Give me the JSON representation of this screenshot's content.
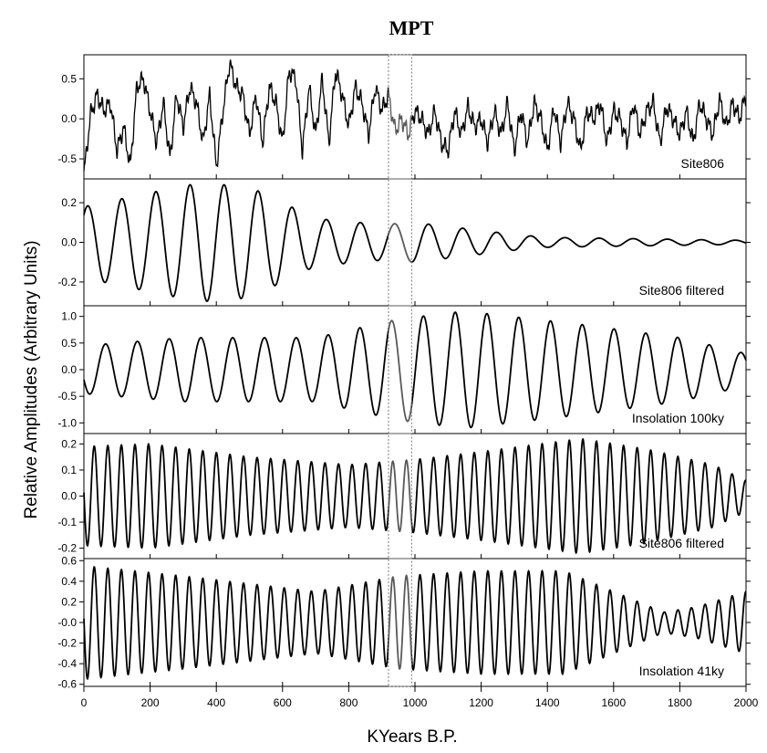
{
  "chart_data": {
    "type": "line",
    "title": "MPT",
    "xlabel": "KYears B.P.",
    "ylabel": "Relative Amplitudes (Arbitrary Units)",
    "xlim": [
      0,
      2000
    ],
    "x_ticks": [
      0,
      200,
      400,
      600,
      800,
      1000,
      1200,
      1400,
      1600,
      1800,
      2000
    ],
    "highlight_window": [
      920,
      990
    ],
    "panels": [
      {
        "name": "Site806",
        "ylim": [
          -0.75,
          0.8
        ],
        "y_ticks": [
          0.5,
          0.0,
          -0.5
        ],
        "y_tick_labels": [
          "0.5",
          "0.0",
          "-0.5"
        ],
        "signal": "noisy",
        "x": [
          0,
          20,
          40,
          60,
          80,
          100,
          120,
          140,
          160,
          180,
          200,
          220,
          240,
          260,
          280,
          300,
          320,
          340,
          360,
          380,
          400,
          420,
          440,
          460,
          480,
          500,
          520,
          540,
          560,
          580,
          600,
          620,
          640,
          660,
          680,
          700,
          720,
          740,
          760,
          780,
          800,
          820,
          840,
          860,
          880,
          900,
          920,
          940,
          960,
          980,
          1000,
          1020,
          1040,
          1060,
          1080,
          1100,
          1120,
          1140,
          1160,
          1180,
          1200,
          1220,
          1240,
          1260,
          1280,
          1300,
          1320,
          1340,
          1360,
          1380,
          1400,
          1420,
          1440,
          1460,
          1480,
          1500,
          1520,
          1540,
          1560,
          1580,
          1600,
          1620,
          1640,
          1660,
          1680,
          1700,
          1720,
          1740,
          1760,
          1780,
          1800,
          1820,
          1840,
          1860,
          1880,
          1900,
          1920,
          1940,
          1960,
          1980,
          2000
        ],
        "y": [
          -0.7,
          0.05,
          0.3,
          0.1,
          0.2,
          -0.4,
          -0.1,
          -0.6,
          0.4,
          0.5,
          0.1,
          -0.3,
          0.2,
          -0.5,
          0.3,
          -0.1,
          0.4,
          0.2,
          -0.3,
          0.3,
          -0.6,
          0.1,
          0.7,
          0.4,
          0.3,
          -0.2,
          0.3,
          -0.3,
          0.4,
          0.2,
          -0.3,
          0.6,
          0.5,
          -0.4,
          0.4,
          -0.2,
          0.5,
          -0.3,
          0.6,
          0.3,
          -0.1,
          0.4,
          0.2,
          -0.2,
          0.4,
          0.1,
          0.3,
          -0.15,
          0.0,
          -0.2,
          0.1,
          0.0,
          -0.2,
          0.1,
          -0.3,
          -0.4,
          0.1,
          -0.2,
          0.15,
          -0.1,
          0.0,
          -0.3,
          0.1,
          -0.2,
          0.2,
          -0.4,
          0.1,
          -0.3,
          0.2,
          0.0,
          -0.4,
          0.15,
          -0.3,
          0.2,
          0.0,
          -0.4,
          0.1,
          0.0,
          0.2,
          -0.3,
          0.1,
          0.0,
          -0.3,
          0.2,
          -0.2,
          0.1,
          0.2,
          -0.3,
          0.15,
          0.0,
          -0.2,
          0.1,
          -0.3,
          0.2,
          0.0,
          -0.2,
          0.25,
          -0.1,
          0.2,
          0.0,
          0.3
        ]
      },
      {
        "name": "Site806 filtered",
        "ylim": [
          -0.32,
          0.32
        ],
        "y_ticks": [
          0.2,
          0.0,
          -0.2
        ],
        "y_tick_labels": [
          "0.2",
          "0.0",
          "-0.2"
        ],
        "signal": "wave",
        "period": 103,
        "phase": -0.7,
        "x": [
          0,
          200,
          350,
          500,
          700,
          900,
          1000,
          1200,
          1300,
          1400,
          1600,
          2000
        ],
        "envelope": [
          0.18,
          0.25,
          0.3,
          0.28,
          0.12,
          0.09,
          0.1,
          0.06,
          0.04,
          0.025,
          0.02,
          0.01
        ]
      },
      {
        "name": "Insolation 100ky",
        "ylim": [
          -1.2,
          1.2
        ],
        "y_ticks": [
          1.0,
          0.5,
          0.0,
          -0.5,
          -1.0
        ],
        "y_tick_labels": [
          "1.0",
          "0.5",
          "0.0",
          "-0.5",
          "-1.0"
        ],
        "signal": "wave",
        "period": 96,
        "phase": 2.0,
        "x": [
          0,
          300,
          700,
          950,
          1150,
          1500,
          1800,
          2000
        ],
        "envelope": [
          0.45,
          0.6,
          0.6,
          0.95,
          1.1,
          0.85,
          0.6,
          0.3
        ]
      },
      {
        "name": "Site806 filtered",
        "ylim": [
          -0.24,
          0.24
        ],
        "y_ticks": [
          0.2,
          0.1,
          0.0,
          -0.1,
          -0.2
        ],
        "y_tick_labels": [
          "0.2",
          "0.1",
          "0.0",
          "-0.1",
          "-0.2"
        ],
        "signal": "wave",
        "period": 41,
        "phase": 1.5,
        "x": [
          0,
          200,
          500,
          800,
          1000,
          1200,
          1500,
          1700,
          1900,
          2000
        ],
        "envelope": [
          0.19,
          0.2,
          0.15,
          0.12,
          0.14,
          0.17,
          0.22,
          0.18,
          0.12,
          0.06
        ]
      },
      {
        "name": "Insolation 41ky",
        "ylim": [
          -0.62,
          0.62
        ],
        "y_ticks": [
          0.6,
          0.4,
          0.2,
          0.0,
          -0.2,
          -0.4,
          -0.6
        ],
        "y_tick_labels": [
          "0.6",
          "0.4",
          "0.2",
          "-0.0",
          "-0.2",
          "-0.4",
          "-0.6"
        ],
        "signal": "wave",
        "period": 41,
        "phase": 1.5,
        "x": [
          0,
          300,
          700,
          950,
          1200,
          1450,
          1600,
          1750,
          1850,
          2000
        ],
        "envelope": [
          0.55,
          0.45,
          0.3,
          0.45,
          0.5,
          0.5,
          0.3,
          0.1,
          0.15,
          0.3
        ]
      }
    ]
  }
}
